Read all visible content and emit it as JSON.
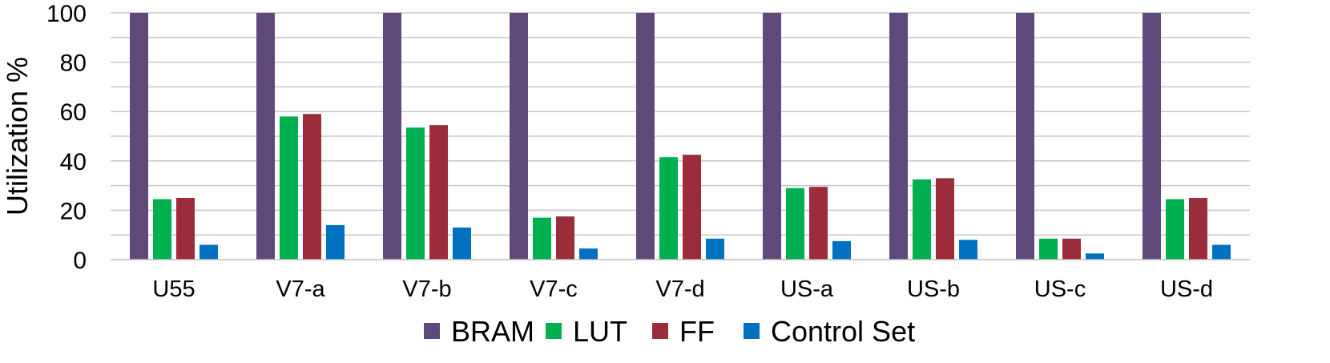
{
  "chart_data": {
    "type": "bar",
    "title": "",
    "xlabel": "",
    "ylabel": "Utilization %",
    "ylim": [
      0,
      100
    ],
    "yticks": [
      0,
      20,
      40,
      60,
      80,
      100
    ],
    "grid": true,
    "legend_position": "bottom",
    "categories": [
      "U55",
      "V7-a",
      "V7-b",
      "V7-c",
      "V7-d",
      "US-a",
      "US-b",
      "US-c",
      "US-d"
    ],
    "series": [
      {
        "name": "BRAM",
        "color": "#5f497a",
        "values": [
          100,
          100,
          100,
          100,
          100,
          100,
          100,
          100,
          100
        ]
      },
      {
        "name": "LUT",
        "color": "#00b050",
        "values": [
          24.5,
          58,
          53.5,
          17,
          41.5,
          29,
          32.5,
          8.5,
          24.5
        ]
      },
      {
        "name": "FF",
        "color": "#9b2d3a",
        "values": [
          25,
          59,
          54.5,
          17.5,
          42.5,
          29.5,
          33,
          8.5,
          25
        ]
      },
      {
        "name": "Control Set",
        "color": "#0070c0",
        "values": [
          6,
          14,
          13,
          4.5,
          8.5,
          7.5,
          8,
          2.5,
          6
        ]
      }
    ]
  }
}
